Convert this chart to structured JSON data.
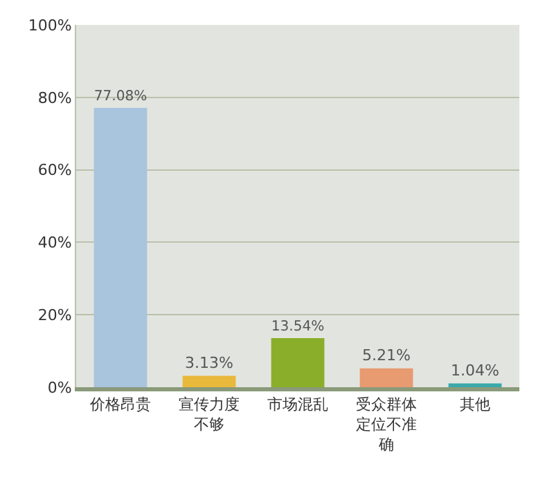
{
  "chart_data": {
    "type": "bar",
    "categories": [
      "价格昂贵",
      "宣传力度不够",
      "市场混乱",
      "受众群体定位不准确",
      "其他"
    ],
    "values": [
      77.08,
      3.13,
      13.54,
      5.21,
      1.04
    ],
    "colors": [
      "#a9c4dd",
      "#e8b93a",
      "#8aae2a",
      "#e89a70",
      "#3aa9a9"
    ],
    "value_labels": [
      "77.08%",
      "3.13%",
      "13.54%",
      "5.21%",
      "1.04%"
    ],
    "ylim": [
      0,
      100
    ],
    "yticks": [
      {
        "value": 0,
        "label": "0%"
      },
      {
        "value": 20,
        "label": "20%"
      },
      {
        "value": 40,
        "label": "40%"
      },
      {
        "value": 60,
        "label": "60%"
      },
      {
        "value": 80,
        "label": "80%"
      },
      {
        "value": 100,
        "label": "100%"
      }
    ],
    "grid": "y",
    "legend": false
  }
}
